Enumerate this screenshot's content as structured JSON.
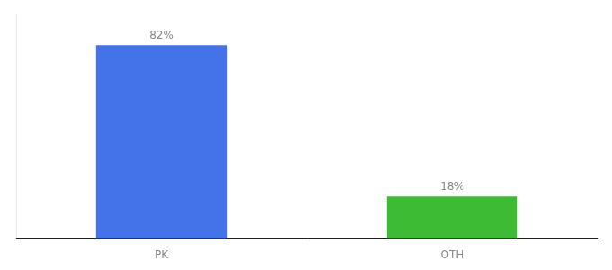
{
  "chart_data": {
    "type": "bar",
    "categories": [
      "PK",
      "OTH"
    ],
    "values": [
      82,
      18
    ],
    "value_labels": [
      "82%",
      "18%"
    ],
    "data_labels": true,
    "colors": [
      "#4472e8",
      "#3dbb35"
    ],
    "ylim": [
      0,
      95
    ],
    "tick_labels": "x",
    "grid": false
  }
}
